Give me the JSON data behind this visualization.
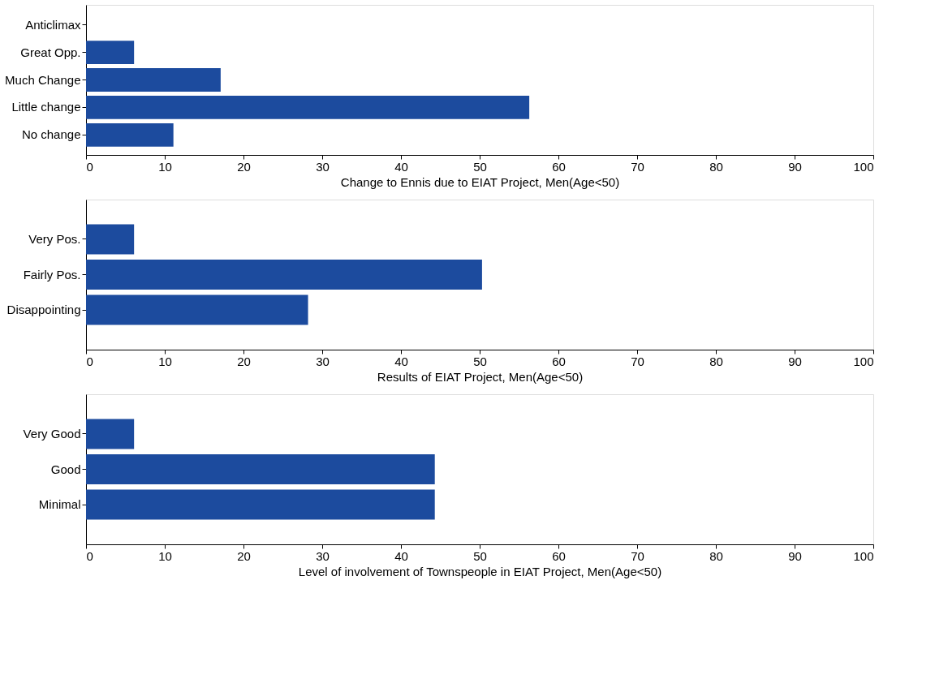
{
  "chart_data": [
    {
      "type": "bar",
      "orientation": "horizontal",
      "categories": [
        "Anticlimax",
        "Great Opp.",
        "Much Change",
        "Little change",
        "No change"
      ],
      "values": [
        0,
        6.1,
        17.1,
        56.3,
        11.1
      ],
      "color": "#1c4b9e",
      "xlim": [
        0,
        100
      ],
      "xticks": [
        0,
        10,
        20,
        30,
        40,
        50,
        60,
        70,
        80,
        90,
        100
      ],
      "xlabel": "Change to Ennis due to EIAT Project, Men(Age<50)",
      "grid": false
    },
    {
      "type": "bar",
      "orientation": "horizontal",
      "categories": [
        "Very Pos.",
        "Fairly Pos.",
        "Disappointing"
      ],
      "values": [
        6.1,
        50.3,
        28.2
      ],
      "color": "#1c4b9e",
      "xlim": [
        0,
        100
      ],
      "xticks": [
        0,
        10,
        20,
        30,
        40,
        50,
        60,
        70,
        80,
        90,
        100
      ],
      "xlabel": "Results of EIAT Project, Men(Age<50)",
      "grid": false
    },
    {
      "type": "bar",
      "orientation": "horizontal",
      "categories": [
        "Very Good",
        "Good",
        "Minimal"
      ],
      "values": [
        6.1,
        44.3,
        44.3
      ],
      "color": "#1c4b9e",
      "xlim": [
        0,
        100
      ],
      "xticks": [
        0,
        10,
        20,
        30,
        40,
        50,
        60,
        70,
        80,
        90,
        100
      ],
      "xlabel": "Level of involvement of Townspeople in EIAT Project, Men(Age<50)",
      "grid": false
    }
  ]
}
